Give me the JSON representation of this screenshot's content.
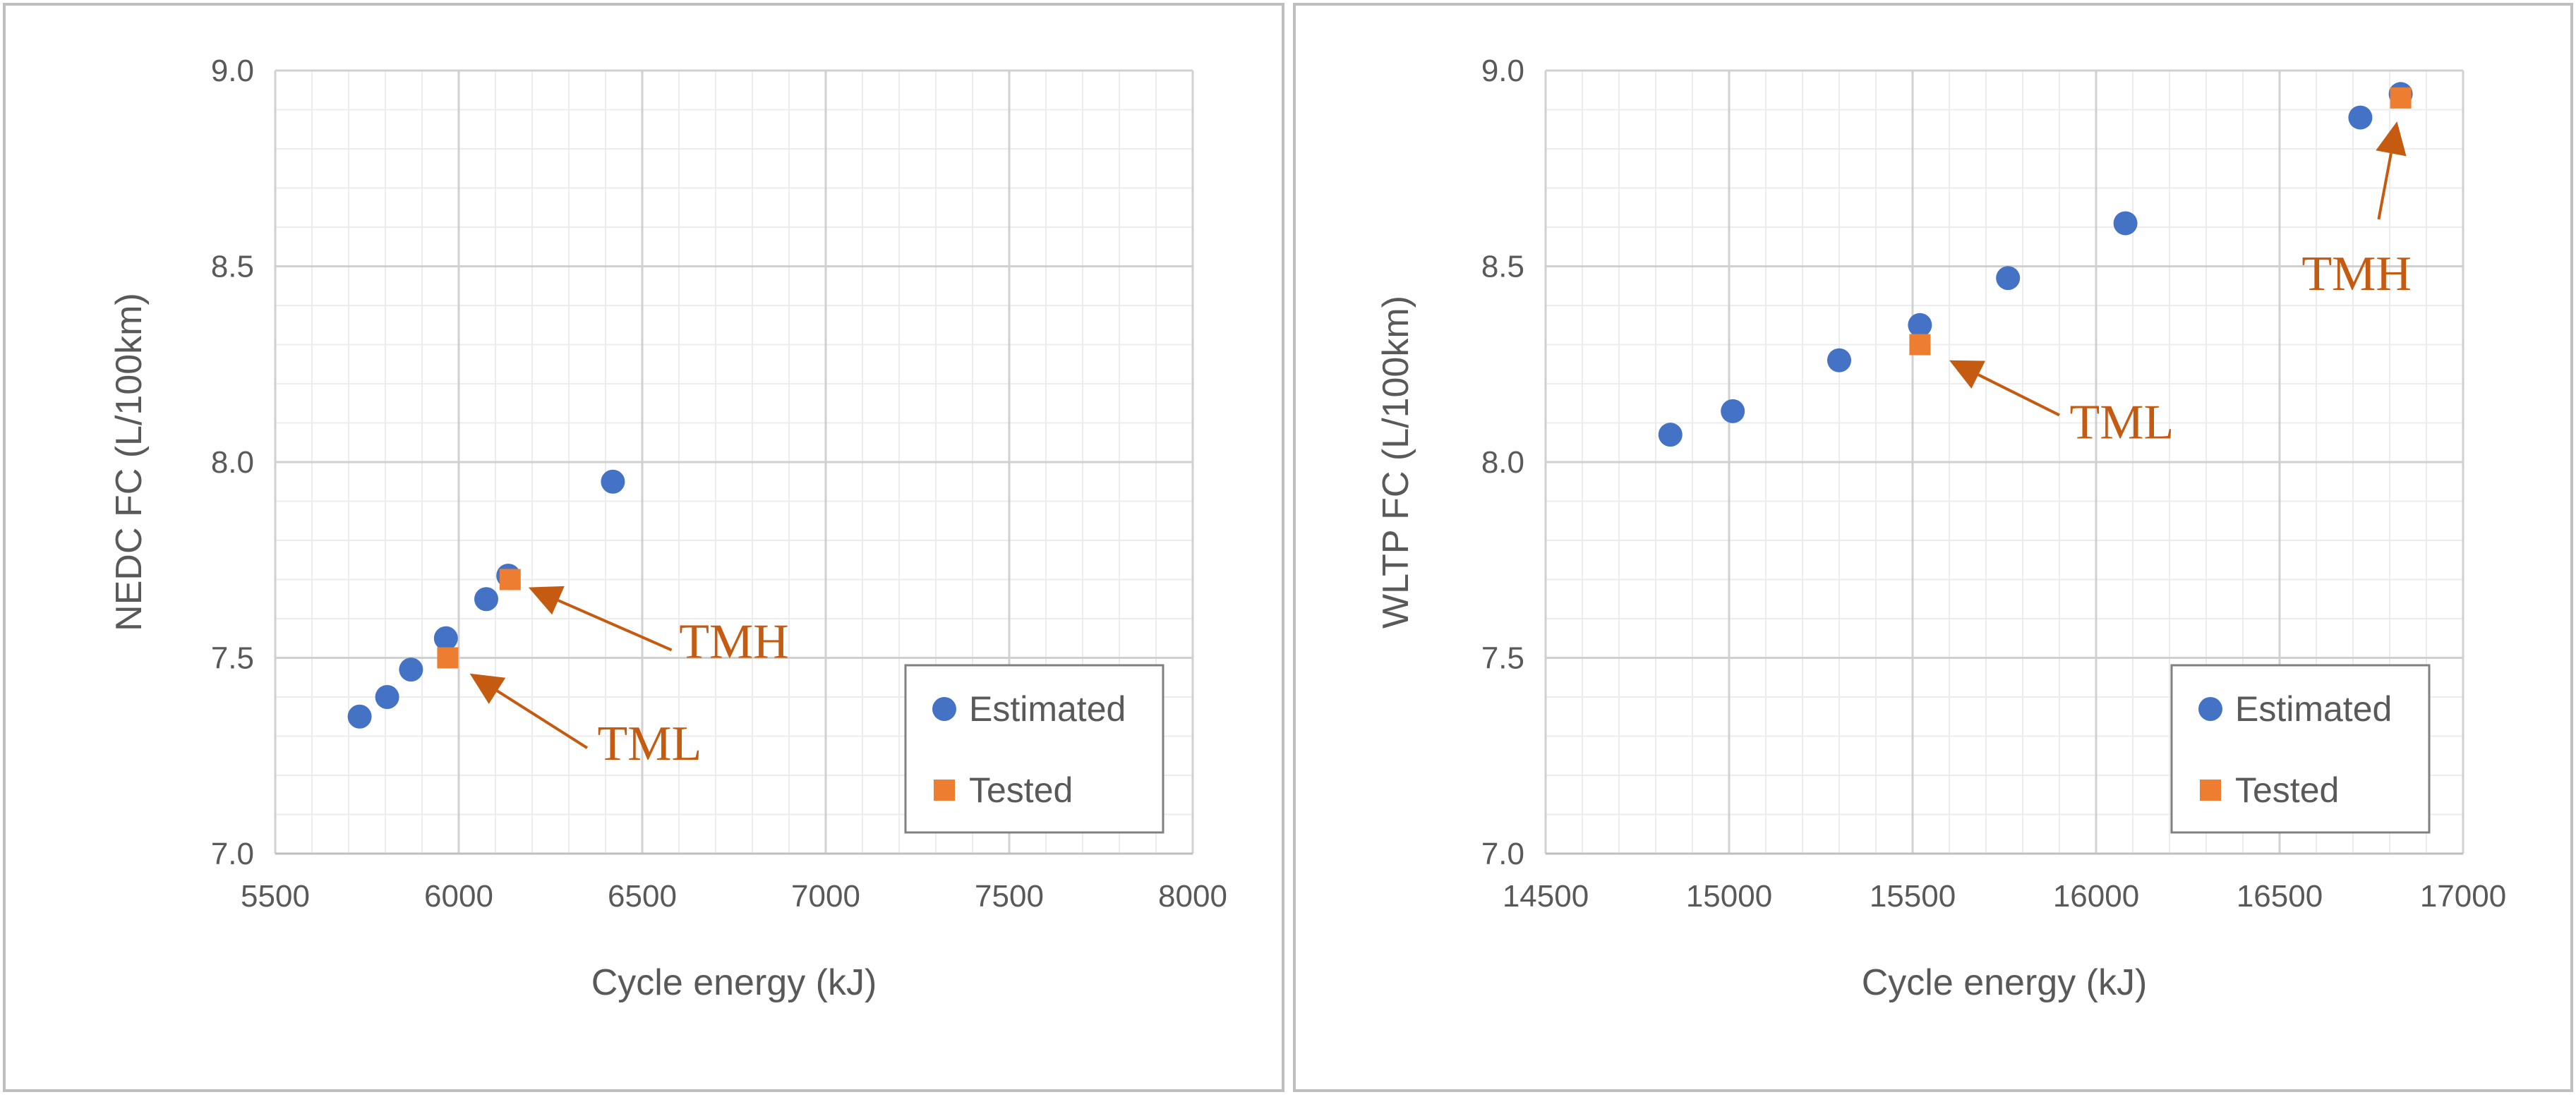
{
  "chart_data": [
    {
      "type": "scatter",
      "xlabel": "Cycle energy (kJ)",
      "ylabel": "NEDC FC (L/100km)",
      "xlim": [
        5500,
        8000
      ],
      "ylim": [
        7.0,
        9.0
      ],
      "xticks": [
        5500,
        6000,
        6500,
        7000,
        7500,
        8000
      ],
      "yticks": [
        7.0,
        7.5,
        8.0,
        8.5,
        9.0
      ],
      "x_tick_labels": [
        "5500",
        "6000",
        "6500",
        "7000",
        "7500",
        "8000"
      ],
      "y_tick_labels": [
        "7.0",
        "7.5",
        "8.0",
        "8.5",
        "9.0"
      ],
      "x_minor_step": 100,
      "y_minor_step": 0.1,
      "legend_position": "bottom-right",
      "series": [
        {
          "name": "Estimated",
          "color": "#4472c4",
          "marker": "circle",
          "points": [
            {
              "x": 5730,
              "y": 7.35
            },
            {
              "x": 5805,
              "y": 7.4
            },
            {
              "x": 5870,
              "y": 7.47
            },
            {
              "x": 5965,
              "y": 7.55
            },
            {
              "x": 6075,
              "y": 7.65
            },
            {
              "x": 6135,
              "y": 7.71
            },
            {
              "x": 6420,
              "y": 7.95
            }
          ]
        },
        {
          "name": "Tested",
          "color": "#ed7d31",
          "marker": "square",
          "points": [
            {
              "x": 5970,
              "y": 7.5
            },
            {
              "x": 6140,
              "y": 7.7
            }
          ]
        }
      ],
      "annotations": [
        {
          "text": "TMH",
          "arrow_to": {
            "x": 6190,
            "y": 7.68
          },
          "from": {
            "x": 6580,
            "y": 7.52
          },
          "label_at": {
            "x": 6750,
            "y": 7.5
          }
        },
        {
          "text": "TML",
          "arrow_to": {
            "x": 6030,
            "y": 7.46
          },
          "from": {
            "x": 6350,
            "y": 7.27
          },
          "label_at": {
            "x": 6520,
            "y": 7.24
          }
        }
      ]
    },
    {
      "type": "scatter",
      "xlabel": "Cycle energy (kJ)",
      "ylabel": "WLTP FC (L/100km)",
      "xlim": [
        14500,
        17000
      ],
      "ylim": [
        7.0,
        9.0
      ],
      "xticks": [
        14500,
        15000,
        15500,
        16000,
        16500,
        17000
      ],
      "yticks": [
        7.0,
        7.5,
        8.0,
        8.5,
        9.0
      ],
      "x_tick_labels": [
        "14500",
        "15000",
        "15500",
        "16000",
        "16500",
        "17000"
      ],
      "y_tick_labels": [
        "7.0",
        "7.5",
        "8.0",
        "8.5",
        "9.0"
      ],
      "x_minor_step": 100,
      "y_minor_step": 0.1,
      "legend_position": "bottom-right",
      "series": [
        {
          "name": "Estimated",
          "color": "#4472c4",
          "marker": "circle",
          "points": [
            {
              "x": 14840,
              "y": 8.07
            },
            {
              "x": 15010,
              "y": 8.13
            },
            {
              "x": 15300,
              "y": 8.26
            },
            {
              "x": 15520,
              "y": 8.35
            },
            {
              "x": 15760,
              "y": 8.47
            },
            {
              "x": 16080,
              "y": 8.61
            },
            {
              "x": 16720,
              "y": 8.88
            },
            {
              "x": 16830,
              "y": 8.94
            }
          ]
        },
        {
          "name": "Tested",
          "color": "#ed7d31",
          "marker": "square",
          "points": [
            {
              "x": 15520,
              "y": 8.3
            },
            {
              "x": 16830,
              "y": 8.93
            }
          ]
        }
      ],
      "annotations": [
        {
          "text": "TML",
          "arrow_to": {
            "x": 15600,
            "y": 8.26
          },
          "from": {
            "x": 15900,
            "y": 8.12
          },
          "label_at": {
            "x": 16070,
            "y": 8.06
          }
        },
        {
          "text": "TMH",
          "arrow_to": {
            "x": 16820,
            "y": 8.87
          },
          "from": {
            "x": 16770,
            "y": 8.62
          },
          "label_at": {
            "x": 16710,
            "y": 8.44
          }
        }
      ]
    }
  ]
}
